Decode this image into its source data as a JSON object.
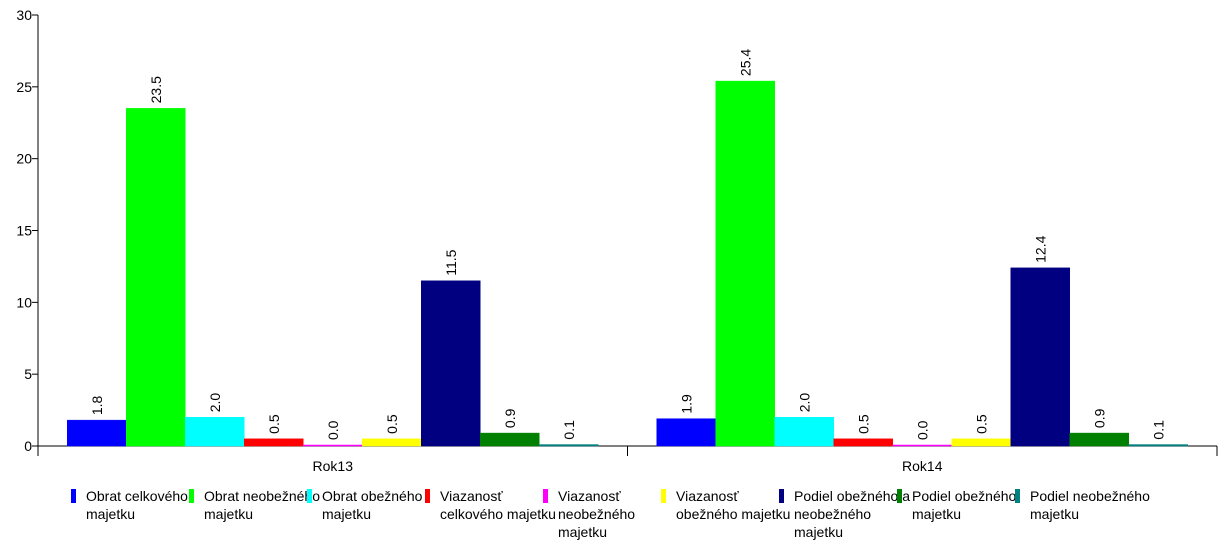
{
  "chart_data": {
    "type": "bar",
    "categories": [
      "Rok13",
      "Rok14"
    ],
    "ylim": [
      0,
      30
    ],
    "yticks": [
      0,
      5,
      10,
      15,
      20,
      25,
      30
    ],
    "grid": false,
    "legend_position": "bottom",
    "series": [
      {
        "name": "Obrat celkového majetku",
        "legend_lines": [
          "Obrat celkového",
          "majetku"
        ],
        "color": "#0000ff",
        "values": [
          1.8,
          1.9
        ],
        "labels": [
          "1.8",
          "1.9"
        ]
      },
      {
        "name": "Obrat neobežného majetku",
        "legend_lines": [
          "Obrat neobežného",
          "majetku"
        ],
        "color": "#00ff00",
        "values": [
          23.5,
          25.4
        ],
        "labels": [
          "23.5",
          "25.4"
        ]
      },
      {
        "name": "Obrat obežného majetku",
        "legend_lines": [
          "Obrat obežného",
          "majetku"
        ],
        "color": "#00ffff",
        "values": [
          2.0,
          2.0
        ],
        "labels": [
          "2.0",
          "2.0"
        ]
      },
      {
        "name": "Viazanosť celkového majetku",
        "legend_lines": [
          "Viazanosť",
          "celkového majetku"
        ],
        "color": "#ff0000",
        "values": [
          0.5,
          0.5
        ],
        "labels": [
          "0.5",
          "0.5"
        ]
      },
      {
        "name": "Viazanosť neobežného majetku",
        "legend_lines": [
          "Viazanosť",
          "neobežného",
          "majetku"
        ],
        "color": "#ff00ff",
        "values": [
          0.0,
          0.0
        ],
        "labels": [
          "0.0",
          "0.0"
        ]
      },
      {
        "name": "Viazanosť obežného majetku",
        "legend_lines": [
          "Viazanosť",
          "obežného majetku"
        ],
        "color": "#ffff00",
        "values": [
          0.5,
          0.5
        ],
        "labels": [
          "0.5",
          "0.5"
        ]
      },
      {
        "name": "Podiel obežného a neobežného majetku",
        "legend_lines": [
          "Podiel obežného a",
          "neobežného",
          "majetku"
        ],
        "color": "#000080",
        "values": [
          11.5,
          12.4
        ],
        "labels": [
          "11.5",
          "12.4"
        ]
      },
      {
        "name": "Podiel obežného majetku",
        "legend_lines": [
          "Podiel obežného",
          "majetku"
        ],
        "color": "#008000",
        "values": [
          0.9,
          0.9
        ],
        "labels": [
          "0.9",
          "0.9"
        ]
      },
      {
        "name": "Podiel neobežného majetku",
        "legend_lines": [
          "Podiel neobežného",
          "majetku"
        ],
        "color": "#008080",
        "values": [
          0.1,
          0.1
        ],
        "labels": [
          "0.1",
          "0.1"
        ]
      }
    ]
  }
}
